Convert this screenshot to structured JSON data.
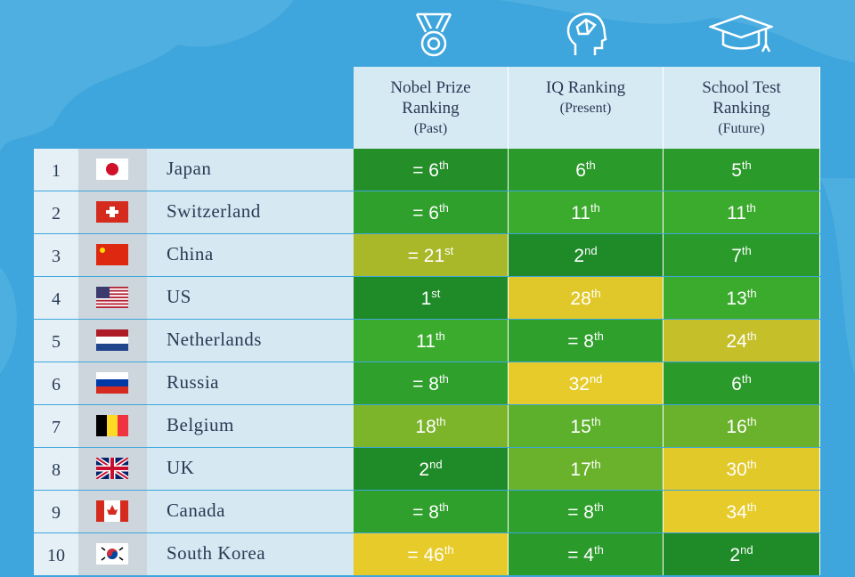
{
  "header": {
    "columns": [
      {
        "title": "Nobel Prize Ranking",
        "period": "(Past)"
      },
      {
        "title": "IQ Ranking",
        "period": "(Present)"
      },
      {
        "title": "School Test Ranking",
        "period": "(Future)"
      }
    ]
  },
  "table": {
    "rows": [
      {
        "rank": "1",
        "country": "Japan",
        "cells": [
          {
            "rank": "= 6",
            "ordinal": "th",
            "color": "#248f28"
          },
          {
            "rank": "6",
            "ordinal": "th",
            "color": "#2a9a2a"
          },
          {
            "rank": "5",
            "ordinal": "th",
            "color": "#2a9a2a"
          }
        ]
      },
      {
        "rank": "2",
        "country": "Switzerland",
        "cells": [
          {
            "rank": "= 6",
            "ordinal": "th",
            "color": "#2fa02c"
          },
          {
            "rank": "11",
            "ordinal": "th",
            "color": "#3aab2c"
          },
          {
            "rank": "11",
            "ordinal": "th",
            "color": "#3aab2c"
          }
        ]
      },
      {
        "rank": "3",
        "country": "China",
        "cells": [
          {
            "rank": "= 21",
            "ordinal": "st",
            "color": "#a8b828"
          },
          {
            "rank": "2",
            "ordinal": "nd",
            "color": "#1f8a28"
          },
          {
            "rank": "7",
            "ordinal": "th",
            "color": "#2a9a2a"
          }
        ]
      },
      {
        "rank": "4",
        "country": "US",
        "cells": [
          {
            "rank": "1",
            "ordinal": "st",
            "color": "#1f8a28"
          },
          {
            "rank": "28",
            "ordinal": "th",
            "color": "#e0c82a"
          },
          {
            "rank": "13",
            "ordinal": "th",
            "color": "#3aab2c"
          }
        ]
      },
      {
        "rank": "5",
        "country": "Netherlands",
        "cells": [
          {
            "rank": "11",
            "ordinal": "th",
            "color": "#3aab2c"
          },
          {
            "rank": "= 8",
            "ordinal": "th",
            "color": "#2fa02c"
          },
          {
            "rank": "24",
            "ordinal": "th",
            "color": "#c5bf2a"
          }
        ]
      },
      {
        "rank": "6",
        "country": "Russia",
        "cells": [
          {
            "rank": "= 8",
            "ordinal": "th",
            "color": "#2fa02c"
          },
          {
            "rank": "32",
            "ordinal": "nd",
            "color": "#e6cb2a"
          },
          {
            "rank": "6",
            "ordinal": "th",
            "color": "#2a9a2a"
          }
        ]
      },
      {
        "rank": "7",
        "country": "Belgium",
        "cells": [
          {
            "rank": "18",
            "ordinal": "th",
            "color": "#7cb42a"
          },
          {
            "rank": "15",
            "ordinal": "th",
            "color": "#5cb02c"
          },
          {
            "rank": "16",
            "ordinal": "th",
            "color": "#6ab22b"
          }
        ]
      },
      {
        "rank": "8",
        "country": "UK",
        "cells": [
          {
            "rank": "2",
            "ordinal": "nd",
            "color": "#1f8a28"
          },
          {
            "rank": "17",
            "ordinal": "th",
            "color": "#6ab22b"
          },
          {
            "rank": "30",
            "ordinal": "th",
            "color": "#e2c92a"
          }
        ]
      },
      {
        "rank": "9",
        "country": "Canada",
        "cells": [
          {
            "rank": "= 8",
            "ordinal": "th",
            "color": "#2fa02c"
          },
          {
            "rank": "= 8",
            "ordinal": "th",
            "color": "#2fa02c"
          },
          {
            "rank": "34",
            "ordinal": "th",
            "color": "#e6cb2a"
          }
        ]
      },
      {
        "rank": "10",
        "country": "South Korea",
        "cells": [
          {
            "rank": "= 46",
            "ordinal": "th",
            "color": "#e6cb2a"
          },
          {
            "rank": "= 4",
            "ordinal": "th",
            "color": "#2a9a2a"
          },
          {
            "rank": "2",
            "ordinal": "nd",
            "color": "#1f8a28"
          }
        ]
      }
    ]
  }
}
